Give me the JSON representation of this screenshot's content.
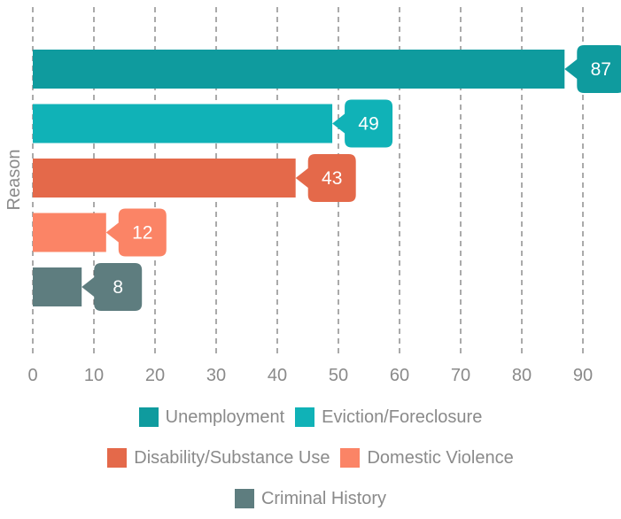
{
  "chart_data": {
    "type": "bar",
    "orientation": "horizontal",
    "ylabel": "Reason",
    "xlabel": "",
    "xlim": [
      0,
      95
    ],
    "xticks": [
      0,
      10,
      20,
      30,
      40,
      50,
      60,
      70,
      80,
      90
    ],
    "grid": "vertical-dashed",
    "legend_position": "bottom",
    "series": [
      {
        "name": "Unemployment",
        "value": 87,
        "color": "#0f9b9e"
      },
      {
        "name": "Eviction/Foreclosure",
        "value": 49,
        "color": "#10b2b7"
      },
      {
        "name": "Disability/Substance Use",
        "value": 43,
        "color": "#e4694a"
      },
      {
        "name": "Domestic Violence",
        "value": 12,
        "color": "#fb8466"
      },
      {
        "name": "Criminal History",
        "value": 8,
        "color": "#5e7d7f"
      }
    ]
  }
}
